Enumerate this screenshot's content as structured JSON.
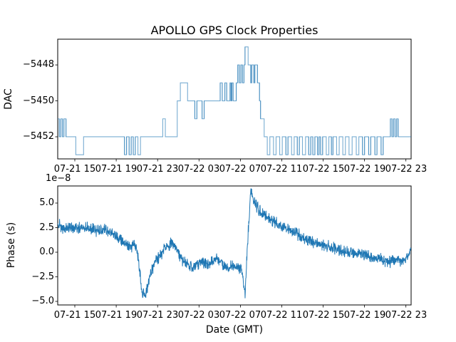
{
  "figure": {
    "title": "APOLLO GPS Clock Properties",
    "background_color": "#ffffff",
    "line_color": "#1f77b4",
    "spine_color": "#000000"
  },
  "chart_data": [
    {
      "type": "line",
      "subtype": "step",
      "title": "APOLLO GPS Clock Properties",
      "ylabel": "DAC",
      "grid": false,
      "legend": "none",
      "x_unit_note": "hours offset, 0 = 07-21 13:00 GMT",
      "xlim": [
        0.35,
        34.5
      ],
      "ylim": [
        -5453.23,
        -5446.57
      ],
      "ytick_values": [
        -5448,
        -5450,
        -5452
      ],
      "ytick_labels": [
        "−5448",
        "−5450",
        "−5452"
      ],
      "xtick_values": [
        2,
        6,
        10,
        14,
        18,
        22,
        26,
        30,
        34
      ],
      "xtick_labels": [
        "07-21 15",
        "07-21 19",
        "07-21 23",
        "07-22 03",
        "07-22 07",
        "07-22 11",
        "07-22 15",
        "07-22 19",
        "07-22 23"
      ],
      "line_opacity": 0.6,
      "steps": [
        [
          0.35,
          -5451
        ],
        [
          0.5,
          -5452
        ],
        [
          0.65,
          -5451
        ],
        [
          0.8,
          -5452
        ],
        [
          0.95,
          -5451
        ],
        [
          1.15,
          -5452
        ],
        [
          2.1,
          -5453
        ],
        [
          2.85,
          -5452
        ],
        [
          6.8,
          -5453
        ],
        [
          7.0,
          -5452
        ],
        [
          7.25,
          -5453
        ],
        [
          7.45,
          -5452
        ],
        [
          7.65,
          -5453
        ],
        [
          7.85,
          -5452
        ],
        [
          8.1,
          -5453
        ],
        [
          8.35,
          -5452
        ],
        [
          10.5,
          -5451
        ],
        [
          10.75,
          -5452
        ],
        [
          11.9,
          -5450
        ],
        [
          12.2,
          -5449
        ],
        [
          12.9,
          -5450
        ],
        [
          13.6,
          -5451
        ],
        [
          13.8,
          -5450
        ],
        [
          14.3,
          -5451
        ],
        [
          14.5,
          -5450
        ],
        [
          16.05,
          -5449
        ],
        [
          16.25,
          -5450
        ],
        [
          16.5,
          -5449
        ],
        [
          16.68,
          -5450
        ],
        [
          17.0,
          -5449
        ],
        [
          17.1,
          -5450
        ],
        [
          17.18,
          -5449
        ],
        [
          17.3,
          -5450
        ],
        [
          17.6,
          -5449
        ],
        [
          17.75,
          -5448
        ],
        [
          17.9,
          -5449
        ],
        [
          18.05,
          -5448
        ],
        [
          18.2,
          -5449
        ],
        [
          18.35,
          -5448
        ],
        [
          18.45,
          -5447
        ],
        [
          18.75,
          -5448
        ],
        [
          19.0,
          -5449
        ],
        [
          19.1,
          -5448
        ],
        [
          19.3,
          -5449
        ],
        [
          19.4,
          -5448
        ],
        [
          19.65,
          -5449
        ],
        [
          19.85,
          -5450
        ],
        [
          19.95,
          -5451
        ],
        [
          20.3,
          -5452
        ],
        [
          20.6,
          -5453
        ],
        [
          20.85,
          -5452
        ],
        [
          21.2,
          -5453
        ],
        [
          21.45,
          -5452
        ],
        [
          21.8,
          -5453
        ],
        [
          22.05,
          -5452
        ],
        [
          22.4,
          -5453
        ],
        [
          22.6,
          -5452
        ],
        [
          22.95,
          -5453
        ],
        [
          23.2,
          -5452
        ],
        [
          23.5,
          -5453
        ],
        [
          23.7,
          -5452
        ],
        [
          24.0,
          -5453
        ],
        [
          24.3,
          -5452
        ],
        [
          24.6,
          -5453
        ],
        [
          24.8,
          -5452
        ],
        [
          25.0,
          -5453
        ],
        [
          25.2,
          -5452
        ],
        [
          25.45,
          -5453
        ],
        [
          25.6,
          -5452
        ],
        [
          25.75,
          -5453
        ],
        [
          25.95,
          -5452
        ],
        [
          26.3,
          -5453
        ],
        [
          26.55,
          -5452
        ],
        [
          26.8,
          -5453
        ],
        [
          26.95,
          -5452
        ],
        [
          27.3,
          -5453
        ],
        [
          27.55,
          -5452
        ],
        [
          27.9,
          -5453
        ],
        [
          28.15,
          -5452
        ],
        [
          28.5,
          -5453
        ],
        [
          28.8,
          -5452
        ],
        [
          29.2,
          -5453
        ],
        [
          29.45,
          -5452
        ],
        [
          29.8,
          -5453
        ],
        [
          30.0,
          -5452
        ],
        [
          30.4,
          -5453
        ],
        [
          30.6,
          -5452
        ],
        [
          31.0,
          -5453
        ],
        [
          31.2,
          -5452
        ],
        [
          31.6,
          -5453
        ],
        [
          31.8,
          -5452
        ],
        [
          32.5,
          -5451
        ],
        [
          32.65,
          -5452
        ],
        [
          32.8,
          -5451
        ],
        [
          32.95,
          -5452
        ],
        [
          33.1,
          -5451
        ],
        [
          33.25,
          -5452
        ]
      ]
    },
    {
      "type": "line",
      "ylabel": "Phase (s)",
      "xlabel": "Date (GMT)",
      "offset_text": "1e−8",
      "grid": false,
      "legend": "none",
      "x_unit_note": "hours offset, 0 = 07-21 13:00 GMT",
      "y_unit_note": "values in units of 1e-8 s",
      "xlim": [
        0.35,
        34.5
      ],
      "ylim": [
        -5.36,
        6.74
      ],
      "ytick_values": [
        5.0,
        2.5,
        0.0,
        -2.5,
        -5.0
      ],
      "ytick_labels": [
        "5.0",
        "2.5",
        "0.0",
        "−2.5",
        "−5.0"
      ],
      "xtick_values": [
        2,
        6,
        10,
        14,
        18,
        22,
        26,
        30,
        34
      ],
      "xtick_labels": [
        "07-21 15",
        "07-21 19",
        "07-21 23",
        "07-22 03",
        "07-22 07",
        "07-22 11",
        "07-22 15",
        "07-22 19",
        "07-22 23"
      ],
      "noise_amplitude": 0.45,
      "noise_seed": 123456789,
      "anchors": [
        [
          0.35,
          2.9
        ],
        [
          0.8,
          2.4
        ],
        [
          1.5,
          2.6
        ],
        [
          2.2,
          2.4
        ],
        [
          3.0,
          2.7
        ],
        [
          3.6,
          2.4
        ],
        [
          4.2,
          2.2
        ],
        [
          4.8,
          2.4
        ],
        [
          5.4,
          1.9
        ],
        [
          6.0,
          1.6
        ],
        [
          6.5,
          1.2
        ],
        [
          7.0,
          0.9
        ],
        [
          7.5,
          0.6
        ],
        [
          7.8,
          0.9
        ],
        [
          8.0,
          0.2
        ],
        [
          8.2,
          -1.2
        ],
        [
          8.5,
          -4.2
        ],
        [
          8.8,
          -4.3
        ],
        [
          9.1,
          -3.2
        ],
        [
          9.4,
          -2.0
        ],
        [
          9.8,
          -1.0
        ],
        [
          10.3,
          -0.3
        ],
        [
          10.8,
          0.6
        ],
        [
          11.3,
          0.9
        ],
        [
          11.8,
          0.2
        ],
        [
          12.3,
          -0.7
        ],
        [
          12.8,
          -1.2
        ],
        [
          13.3,
          -1.5
        ],
        [
          13.8,
          -1.2
        ],
        [
          14.3,
          -0.8
        ],
        [
          14.8,
          -1.4
        ],
        [
          15.3,
          -1.0
        ],
        [
          15.8,
          -0.6
        ],
        [
          16.3,
          -1.3
        ],
        [
          16.8,
          -1.6
        ],
        [
          17.3,
          -1.3
        ],
        [
          17.8,
          -1.5
        ],
        [
          18.1,
          -1.8
        ],
        [
          18.45,
          -4.1
        ],
        [
          18.7,
          1.0
        ],
        [
          19.0,
          6.3
        ],
        [
          19.3,
          5.2
        ],
        [
          19.8,
          4.3
        ],
        [
          20.5,
          3.6
        ],
        [
          21.5,
          2.9
        ],
        [
          22.5,
          2.4
        ],
        [
          23.5,
          1.8
        ],
        [
          24.5,
          1.2
        ],
        [
          25.5,
          0.9
        ],
        [
          26.5,
          0.6
        ],
        [
          27.5,
          0.2
        ],
        [
          28.5,
          0.0
        ],
        [
          29.5,
          -0.2
        ],
        [
          30.5,
          -0.4
        ],
        [
          31.5,
          -0.6
        ],
        [
          32.3,
          -1.0
        ],
        [
          33.0,
          -0.8
        ],
        [
          33.8,
          -0.9
        ],
        [
          34.2,
          -0.4
        ],
        [
          34.5,
          0.3
        ]
      ]
    }
  ]
}
